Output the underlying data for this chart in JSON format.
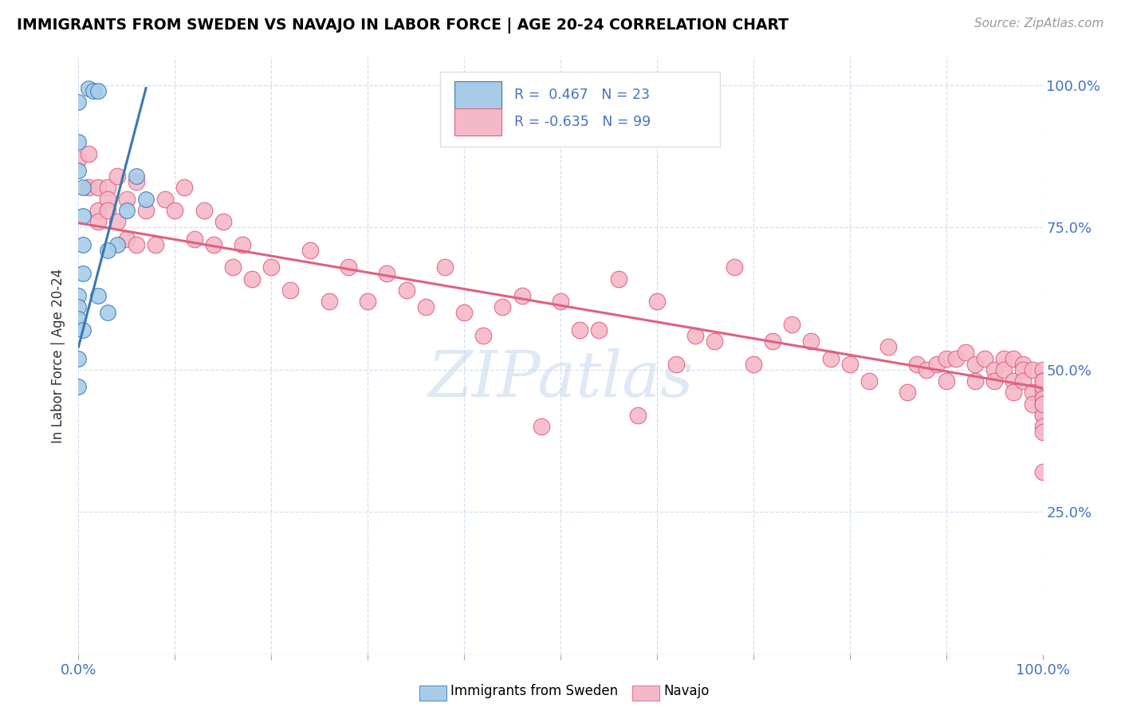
{
  "title": "IMMIGRANTS FROM SWEDEN VS NAVAJO IN LABOR FORCE | AGE 20-24 CORRELATION CHART",
  "source": "Source: ZipAtlas.com",
  "ylabel": "In Labor Force | Age 20-24",
  "xlim": [
    0.0,
    1.0
  ],
  "ylim": [
    0.0,
    1.05
  ],
  "blue_R": 0.467,
  "blue_N": 23,
  "pink_R": -0.635,
  "pink_N": 99,
  "blue_color": "#a8cce8",
  "pink_color": "#f4b8c8",
  "blue_line_color": "#3a78b5",
  "pink_line_color": "#e06080",
  "watermark": "ZIPatlas",
  "blue_scatter_x": [
    0.01,
    0.015,
    0.02,
    0.0,
    0.0,
    0.0,
    0.005,
    0.005,
    0.005,
    0.005,
    0.0,
    0.0,
    0.0,
    0.005,
    0.0,
    0.04,
    0.03,
    0.0,
    0.06,
    0.05,
    0.03,
    0.02,
    0.07
  ],
  "blue_scatter_y": [
    0.995,
    0.99,
    0.99,
    0.97,
    0.9,
    0.85,
    0.82,
    0.77,
    0.72,
    0.67,
    0.63,
    0.61,
    0.59,
    0.57,
    0.52,
    0.72,
    0.6,
    0.47,
    0.84,
    0.78,
    0.71,
    0.63,
    0.8
  ],
  "pink_scatter_x": [
    0.0,
    0.01,
    0.01,
    0.02,
    0.02,
    0.02,
    0.03,
    0.03,
    0.03,
    0.04,
    0.04,
    0.05,
    0.05,
    0.06,
    0.06,
    0.07,
    0.08,
    0.09,
    0.1,
    0.11,
    0.12,
    0.13,
    0.14,
    0.15,
    0.16,
    0.17,
    0.18,
    0.2,
    0.22,
    0.24,
    0.26,
    0.28,
    0.3,
    0.32,
    0.34,
    0.36,
    0.38,
    0.4,
    0.42,
    0.44,
    0.46,
    0.48,
    0.5,
    0.52,
    0.54,
    0.56,
    0.58,
    0.6,
    0.62,
    0.64,
    0.66,
    0.68,
    0.7,
    0.72,
    0.74,
    0.76,
    0.78,
    0.8,
    0.82,
    0.84,
    0.86,
    0.87,
    0.88,
    0.89,
    0.9,
    0.9,
    0.91,
    0.92,
    0.93,
    0.93,
    0.94,
    0.95,
    0.95,
    0.96,
    0.96,
    0.97,
    0.97,
    0.97,
    0.98,
    0.98,
    0.98,
    0.99,
    0.99,
    0.99,
    1.0,
    1.0,
    1.0,
    1.0,
    1.0,
    1.0,
    1.0,
    1.0,
    1.0,
    1.0,
    1.0,
    1.0,
    1.0,
    1.0,
    1.0
  ],
  "pink_scatter_y": [
    0.87,
    0.88,
    0.82,
    0.82,
    0.78,
    0.76,
    0.82,
    0.8,
    0.78,
    0.84,
    0.76,
    0.8,
    0.73,
    0.83,
    0.72,
    0.78,
    0.72,
    0.8,
    0.78,
    0.82,
    0.73,
    0.78,
    0.72,
    0.76,
    0.68,
    0.72,
    0.66,
    0.68,
    0.64,
    0.71,
    0.62,
    0.68,
    0.62,
    0.67,
    0.64,
    0.61,
    0.68,
    0.6,
    0.56,
    0.61,
    0.63,
    0.4,
    0.62,
    0.57,
    0.57,
    0.66,
    0.42,
    0.62,
    0.51,
    0.56,
    0.55,
    0.68,
    0.51,
    0.55,
    0.58,
    0.55,
    0.52,
    0.51,
    0.48,
    0.54,
    0.46,
    0.51,
    0.5,
    0.51,
    0.52,
    0.48,
    0.52,
    0.53,
    0.48,
    0.51,
    0.52,
    0.5,
    0.48,
    0.52,
    0.5,
    0.48,
    0.52,
    0.46,
    0.51,
    0.5,
    0.48,
    0.5,
    0.46,
    0.44,
    0.5,
    0.48,
    0.46,
    0.44,
    0.42,
    0.48,
    0.47,
    0.45,
    0.44,
    0.42,
    0.4,
    0.39,
    0.48,
    0.44,
    0.32
  ],
  "pink_line_start_x": 0.0,
  "pink_line_start_y": 0.758,
  "pink_line_end_x": 1.0,
  "pink_line_end_y": 0.468,
  "blue_line_start_x": 0.0,
  "blue_line_start_y": 0.54,
  "blue_line_end_x": 0.07,
  "blue_line_end_y": 0.995
}
